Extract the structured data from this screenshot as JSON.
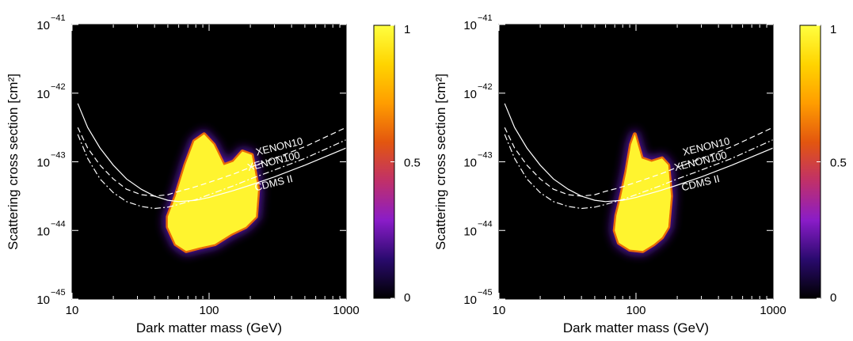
{
  "chart_data": [
    {
      "type": "heatmap",
      "xlabel": "Dark matter mass (GeV)",
      "ylabel": "Scattering cross section [cm²]",
      "x_scale": "log",
      "y_scale": "log",
      "xlim": [
        10,
        1000
      ],
      "ylim": [
        1e-45,
        1e-41
      ],
      "x_ticks": [
        {
          "value": 10,
          "label": "10"
        },
        {
          "value": 100,
          "label": "100"
        },
        {
          "value": 1000,
          "label": "1000"
        }
      ],
      "y_ticks": [
        {
          "exponent": -45,
          "base": "10",
          "exp_label": "−45"
        },
        {
          "exponent": -44,
          "base": "10",
          "exp_label": "−44"
        },
        {
          "exponent": -43,
          "base": "10",
          "exp_label": "−43"
        },
        {
          "exponent": -42,
          "base": "10",
          "exp_label": "−42"
        },
        {
          "exponent": -41,
          "base": "10",
          "exp_label": "−41"
        }
      ],
      "colorbar": {
        "min": 0,
        "max": 1,
        "tick_labels": [
          {
            "value": 0,
            "label": "0"
          },
          {
            "value": 0.5,
            "label": "0.5"
          },
          {
            "value": 1,
            "label": "1"
          }
        ],
        "colors": [
          "#000000",
          "#2a0a6e",
          "#8a1cc8",
          "#c0306a",
          "#e3560f",
          "#ff9d00",
          "#ffd400",
          "#ffff40"
        ]
      },
      "region": {
        "mass": [
          50,
          57,
          68,
          85,
          110,
          145,
          185,
          220,
          228,
          205,
          175,
          150,
          128,
          108,
          92,
          78,
          67,
          57,
          50
        ],
        "log_sigma": [
          -43.95,
          -44.2,
          -44.3,
          -44.25,
          -44.2,
          -44.05,
          -43.95,
          -43.8,
          -43.4,
          -42.9,
          -42.85,
          -43.0,
          -43.05,
          -42.75,
          -42.6,
          -42.7,
          -43.05,
          -43.5,
          -43.8
        ]
      },
      "limits": [
        {
          "name": "XENON10",
          "style": "dashed",
          "mass": [
            11,
            13,
            16,
            20,
            25,
            32,
            40,
            50,
            60,
            75,
            100,
            150,
            200,
            300,
            500,
            1000
          ],
          "log_sigma": [
            -42.5,
            -42.8,
            -43.05,
            -43.25,
            -43.4,
            -43.48,
            -43.5,
            -43.48,
            -43.43,
            -43.38,
            -43.3,
            -43.18,
            -43.08,
            -42.95,
            -42.78,
            -42.5
          ]
        },
        {
          "name": "XENON100",
          "style": "dashdot",
          "mass": [
            11,
            13,
            16,
            20,
            25,
            32,
            40,
            50,
            60,
            80,
            100,
            150,
            200,
            300,
            500,
            1000
          ],
          "log_sigma": [
            -42.6,
            -42.95,
            -43.25,
            -43.45,
            -43.58,
            -43.65,
            -43.68,
            -43.66,
            -43.62,
            -43.55,
            -43.48,
            -43.35,
            -43.25,
            -43.12,
            -42.95,
            -42.68
          ]
        },
        {
          "name": "CDMS II",
          "style": "solid",
          "mass": [
            11,
            13,
            16,
            20,
            25,
            32,
            40,
            50,
            60,
            80,
            100,
            150,
            200,
            300,
            500,
            1000
          ],
          "log_sigma": [
            -42.15,
            -42.5,
            -42.8,
            -43.05,
            -43.25,
            -43.4,
            -43.5,
            -43.56,
            -43.58,
            -43.56,
            -43.52,
            -43.42,
            -43.34,
            -43.22,
            -43.05,
            -42.8
          ]
        }
      ]
    },
    {
      "type": "heatmap",
      "xlabel": "Dark matter mass (GeV)",
      "ylabel": "Scattering cross section [cm²]",
      "x_scale": "log",
      "y_scale": "log",
      "xlim": [
        10,
        1000
      ],
      "ylim": [
        1e-45,
        1e-41
      ],
      "x_ticks": [
        {
          "value": 10,
          "label": "10"
        },
        {
          "value": 100,
          "label": "100"
        },
        {
          "value": 1000,
          "label": "1000"
        }
      ],
      "y_ticks": [
        {
          "exponent": -45,
          "base": "10",
          "exp_label": "−45"
        },
        {
          "exponent": -44,
          "base": "10",
          "exp_label": "−44"
        },
        {
          "exponent": -43,
          "base": "10",
          "exp_label": "−43"
        },
        {
          "exponent": -42,
          "base": "10",
          "exp_label": "−42"
        },
        {
          "exponent": -41,
          "base": "10",
          "exp_label": "−41"
        }
      ],
      "colorbar": {
        "min": 0,
        "max": 1,
        "tick_labels": [
          {
            "value": 0,
            "label": "0"
          },
          {
            "value": 0.5,
            "label": "0.5"
          },
          {
            "value": 1,
            "label": "1"
          }
        ],
        "colors": [
          "#000000",
          "#2a0a6e",
          "#8a1cc8",
          "#c0306a",
          "#e3560f",
          "#ff9d00",
          "#ffd400",
          "#ffff40"
        ]
      },
      "region": {
        "mass": [
          70,
          75,
          90,
          112,
          135,
          155,
          172,
          180,
          172,
          155,
          130,
          110,
          98,
          92,
          85,
          78,
          72,
          70
        ],
        "log_sigma": [
          -44.0,
          -44.18,
          -44.28,
          -44.3,
          -44.2,
          -44.1,
          -43.95,
          -43.5,
          -43.05,
          -42.95,
          -43.0,
          -42.95,
          -42.6,
          -42.75,
          -43.15,
          -43.5,
          -43.78,
          -44.0
        ]
      },
      "limits": [
        {
          "name": "XENON10",
          "style": "dashed",
          "mass": [
            11,
            13,
            16,
            20,
            25,
            32,
            40,
            50,
            60,
            75,
            100,
            150,
            200,
            300,
            500,
            1000
          ],
          "log_sigma": [
            -42.5,
            -42.8,
            -43.05,
            -43.25,
            -43.4,
            -43.48,
            -43.5,
            -43.48,
            -43.43,
            -43.38,
            -43.3,
            -43.18,
            -43.08,
            -42.95,
            -42.78,
            -42.5
          ]
        },
        {
          "name": "XENON100",
          "style": "dashdot",
          "mass": [
            11,
            13,
            16,
            20,
            25,
            32,
            40,
            50,
            60,
            80,
            100,
            150,
            200,
            300,
            500,
            1000
          ],
          "log_sigma": [
            -42.6,
            -42.95,
            -43.25,
            -43.45,
            -43.58,
            -43.65,
            -43.68,
            -43.66,
            -43.62,
            -43.55,
            -43.48,
            -43.35,
            -43.25,
            -43.12,
            -42.95,
            -42.68
          ]
        },
        {
          "name": "CDMS II",
          "style": "solid",
          "mass": [
            11,
            13,
            16,
            20,
            25,
            32,
            40,
            50,
            60,
            80,
            100,
            150,
            200,
            300,
            500,
            1000
          ],
          "log_sigma": [
            -42.15,
            -42.5,
            -42.8,
            -43.05,
            -43.25,
            -43.4,
            -43.5,
            -43.56,
            -43.58,
            -43.56,
            -43.52,
            -43.42,
            -43.34,
            -43.22,
            -43.05,
            -42.8
          ]
        }
      ]
    }
  ]
}
